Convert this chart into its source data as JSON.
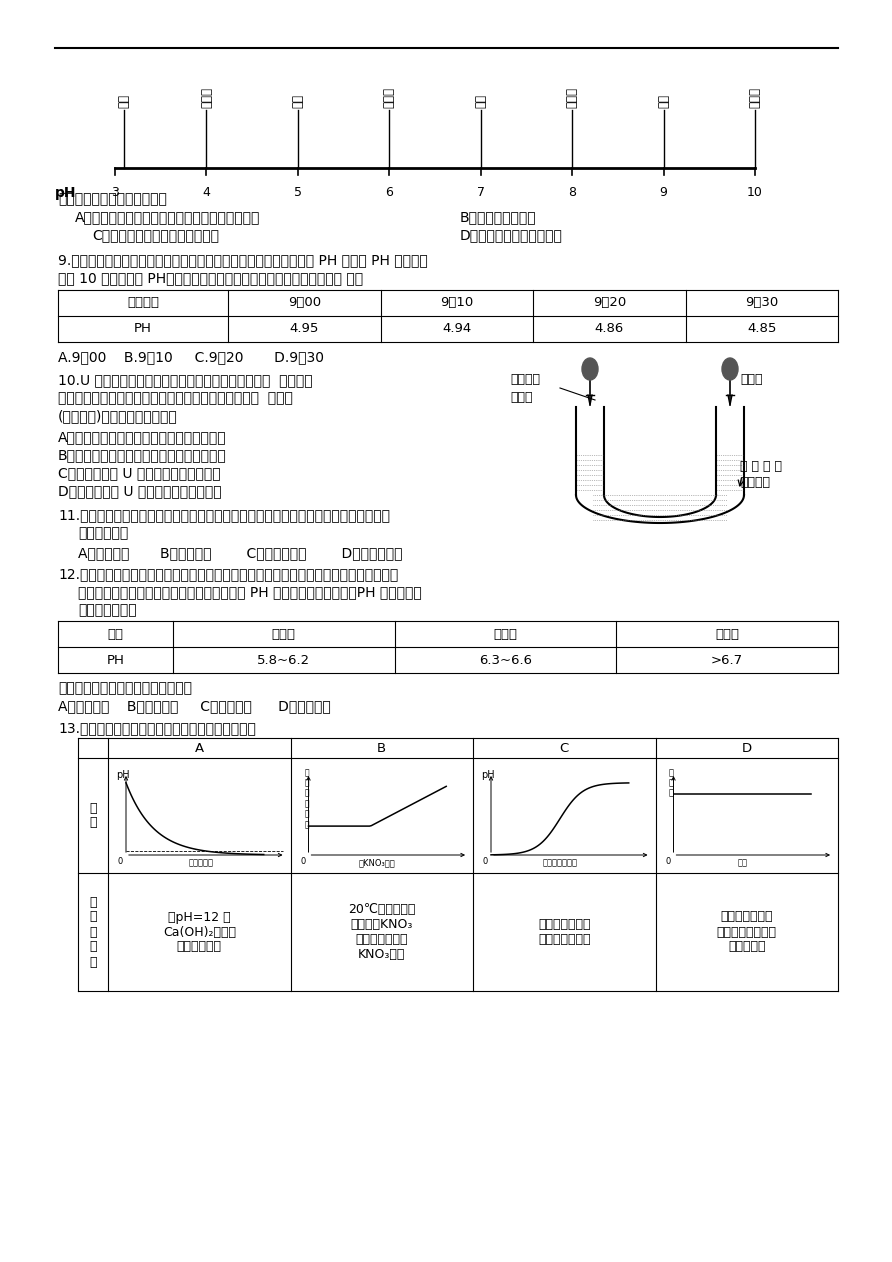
{
  "bg_color": "#ffffff",
  "ph_scale_labels": [
    "食醋",
    "葡萄汁",
    "酱油",
    "西瓜汁",
    "牛奶",
    "玉米粥",
    "牙膏",
    "肥皂水"
  ],
  "ph_scale_positions": [
    3.1,
    4.0,
    5.0,
    6.0,
    7.0,
    8.0,
    9.0,
    10.0
  ],
  "ph_ticks": [
    3,
    4,
    5,
    6,
    7,
    8,
    9,
    10
  ],
  "q9_table_headers": [
    "测定时间",
    "9：00",
    "9：10",
    "9：20",
    "9：30"
  ],
  "q9_table_row": [
    "PH",
    "4.95",
    "4.94",
    "4.86",
    "4.85"
  ],
  "q12_table_headers": [
    "名称",
    "新鲜肉",
    "次鲜肉",
    "变质肉"
  ],
  "q12_table_row": [
    "PH",
    "5.8~6.2",
    "6.3~6.6",
    ">6.7"
  ],
  "q13_A_text": "向pH=12 的\nCa(OH)₂溶液中\n不断加水稀释",
  "q13_B_text": "20℃时，向一杯\n不饱和的KNO₃\n溶液中逐步加入\nKNO₃晶体",
  "q13_C_text": "向稀盐酸中滴加\n过量的烧碱溶液",
  "q13_D_text": "将一定质量的碳\n在密闭容器中（含\n空气）加热"
}
